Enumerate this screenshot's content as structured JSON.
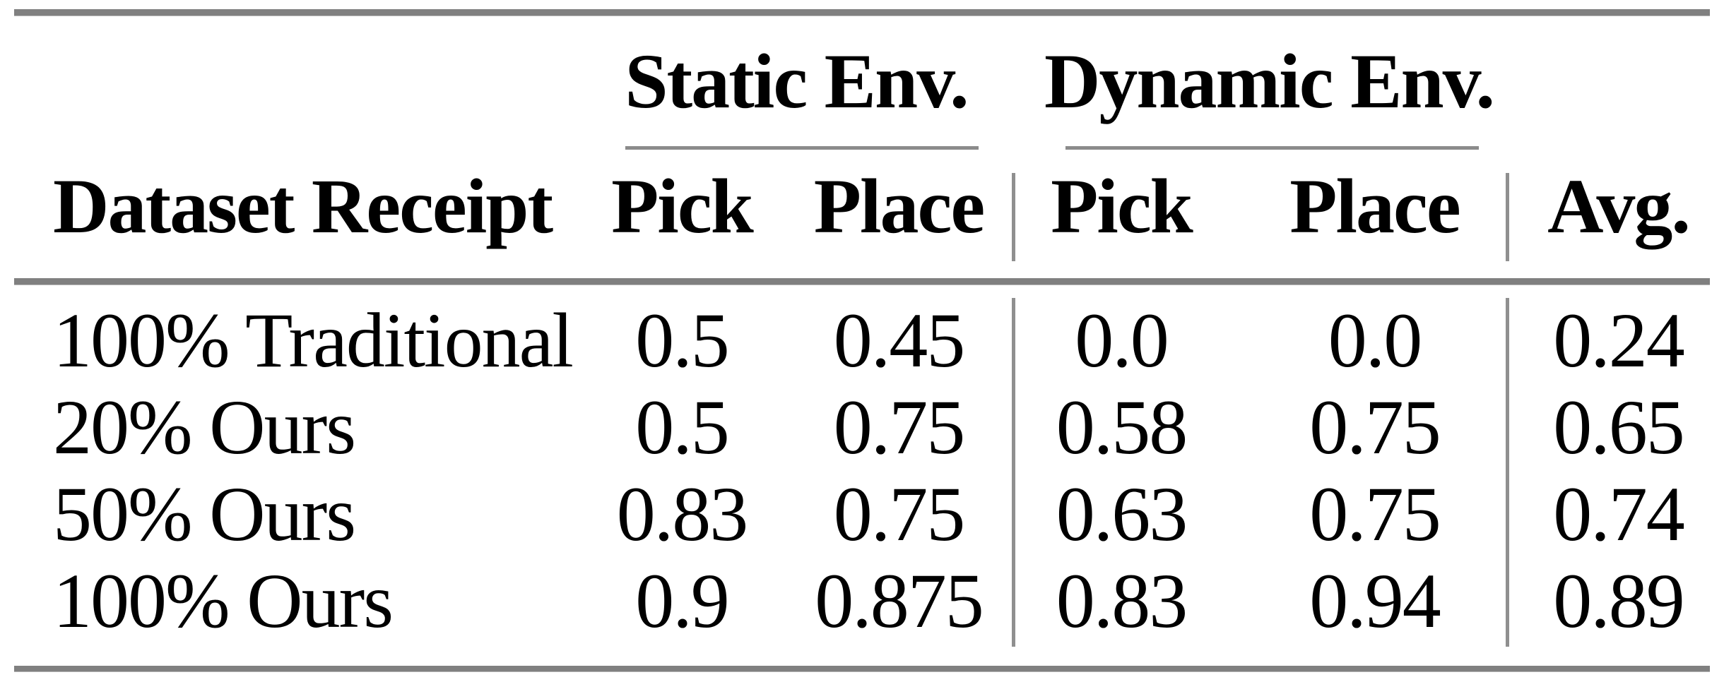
{
  "table": {
    "group_headers": {
      "static": "Static Env.",
      "dynamic": "Dynamic Env."
    },
    "column_headers": {
      "dataset": "Dataset Receipt",
      "static_pick": "Pick",
      "static_place": "Place",
      "dynamic_pick": "Pick",
      "dynamic_place": "Place",
      "avg": "Avg."
    },
    "rows": [
      {
        "dataset": "100% Traditional",
        "static_pick": "0.5",
        "static_place": "0.45",
        "dynamic_pick": "0.0",
        "dynamic_place": "0.0",
        "avg": "0.24"
      },
      {
        "dataset": "20% Ours",
        "static_pick": "0.5",
        "static_place": "0.75",
        "dynamic_pick": "0.58",
        "dynamic_place": "0.75",
        "avg": "0.65"
      },
      {
        "dataset": "50% Ours",
        "static_pick": "0.83",
        "static_place": "0.75",
        "dynamic_pick": "0.63",
        "dynamic_place": "0.75",
        "avg": "0.74"
      },
      {
        "dataset": "100% Ours",
        "static_pick": "0.9",
        "static_place": "0.875",
        "dynamic_pick": "0.83",
        "dynamic_place": "0.94",
        "avg": "0.89"
      }
    ]
  },
  "chart_data": {
    "type": "table",
    "column_groups": [
      {
        "label": "Static Env.",
        "columns": [
          "Pick",
          "Place"
        ]
      },
      {
        "label": "Dynamic Env.",
        "columns": [
          "Pick",
          "Place"
        ]
      }
    ],
    "columns": [
      "Dataset Receipt",
      "Static Pick",
      "Static Place",
      "Dynamic Pick",
      "Dynamic Place",
      "Avg."
    ],
    "rows": [
      [
        "100% Traditional",
        0.5,
        0.45,
        0.0,
        0.0,
        0.24
      ],
      [
        "20% Ours",
        0.5,
        0.75,
        0.58,
        0.75,
        0.65
      ],
      [
        "50% Ours",
        0.83,
        0.75,
        0.63,
        0.75,
        0.74
      ],
      [
        "100% Ours",
        0.9,
        0.875,
        0.83,
        0.94,
        0.89
      ]
    ]
  },
  "colors": {
    "rule_thick": "#808080",
    "rule_thin": "#8f8f8f",
    "text": "#000000",
    "background": "#ffffff"
  }
}
